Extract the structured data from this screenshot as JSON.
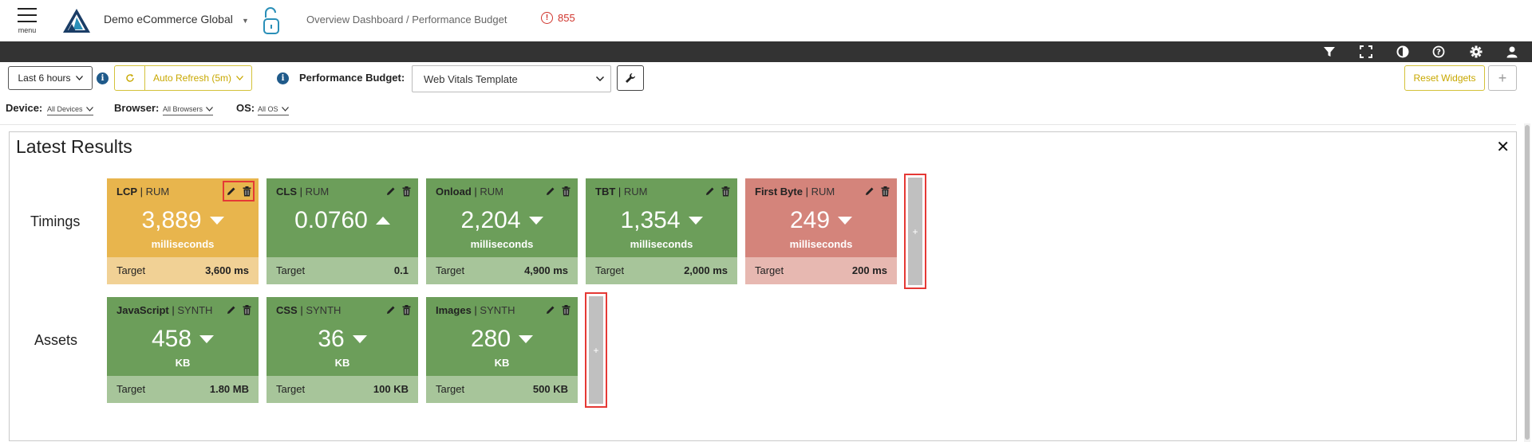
{
  "header": {
    "menu_label": "menu",
    "account_name": "Demo eCommerce Global",
    "breadcrumb": "Overview Dashboard / Performance Budget",
    "alert_count": "855",
    "alert_symbol": "!"
  },
  "toolbar_icons": [
    "filter-icon",
    "fullscreen-icon",
    "contrast-icon",
    "help-icon",
    "settings-icon",
    "user-icon"
  ],
  "controls": {
    "time_range": "Last 6 hours",
    "auto_refresh": "Auto Refresh (5m)",
    "budget_label": "Performance Budget:",
    "budget_value": "Web Vitals Template",
    "reset_widgets": "Reset Widgets",
    "add_widget": "+",
    "info": "i"
  },
  "filters": {
    "device_label": "Device:",
    "device_value": "All Devices",
    "browser_label": "Browser:",
    "browser_value": "All Browsers",
    "os_label": "OS:",
    "os_value": "All OS"
  },
  "panel": {
    "title": "Latest Results",
    "close": "✕"
  },
  "rows": {
    "timings": {
      "label": "Timings",
      "cards": [
        {
          "metric": "LCP",
          "source": "RUM",
          "value": "3,889",
          "trend": "down",
          "unit": "milliseconds",
          "target_label": "Target",
          "target": "3,600 ms",
          "status": "yellow"
        },
        {
          "metric": "CLS",
          "source": "RUM",
          "value": "0.0760",
          "trend": "up",
          "unit": "",
          "target_label": "Target",
          "target": "0.1",
          "status": "green"
        },
        {
          "metric": "Onload",
          "source": "RUM",
          "value": "2,204",
          "trend": "down",
          "unit": "milliseconds",
          "target_label": "Target",
          "target": "4,900 ms",
          "status": "green"
        },
        {
          "metric": "TBT",
          "source": "RUM",
          "value": "1,354",
          "trend": "down",
          "unit": "milliseconds",
          "target_label": "Target",
          "target": "2,000 ms",
          "status": "green"
        },
        {
          "metric": "First Byte",
          "source": "RUM",
          "value": "249",
          "trend": "down",
          "unit": "milliseconds",
          "target_label": "Target",
          "target": "200 ms",
          "status": "red"
        }
      ],
      "add": "+"
    },
    "assets": {
      "label": "Assets",
      "cards": [
        {
          "metric": "JavaScript",
          "source": "SYNTH",
          "value": "458",
          "trend": "down",
          "unit": "KB",
          "target_label": "Target",
          "target": "1.80 MB",
          "status": "green"
        },
        {
          "metric": "CSS",
          "source": "SYNTH",
          "value": "36",
          "trend": "down",
          "unit": "KB",
          "target_label": "Target",
          "target": "100 KB",
          "status": "green"
        },
        {
          "metric": "Images",
          "source": "SYNTH",
          "value": "280",
          "trend": "down",
          "unit": "KB",
          "target_label": "Target",
          "target": "500 KB",
          "status": "green"
        }
      ],
      "add": "+"
    }
  },
  "colors": {
    "green_top": "#6c9e5a",
    "yellow_top": "#e8b54d",
    "red_top": "#d4847b",
    "accent_yellow": "#d4c23a",
    "alert_red": "#d0342c",
    "dark_toolbar": "#333333"
  }
}
